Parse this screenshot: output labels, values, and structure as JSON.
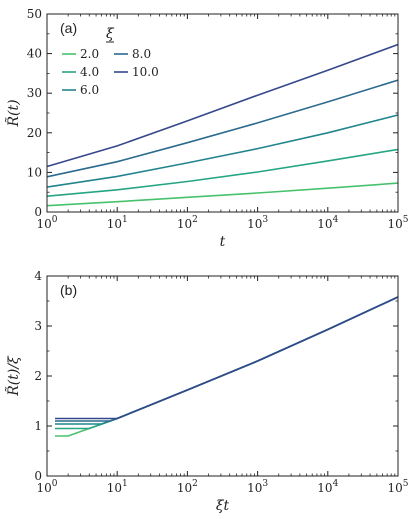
{
  "chart_data": [
    {
      "type": "line",
      "panel_label": "(a)",
      "xlabel": "t",
      "ylabel": "R̃(t)",
      "xscale": "log",
      "xlim": [
        1,
        100000
      ],
      "ylim": [
        0,
        50
      ],
      "xticks": [
        1,
        10,
        100,
        1000,
        10000,
        100000
      ],
      "xtick_labels": [
        "10^0",
        "10^1",
        "10^2",
        "10^3",
        "10^4",
        "10^5"
      ],
      "yticks": [
        0,
        10,
        20,
        30,
        40,
        50
      ],
      "ytick_labels": [
        "0",
        "10",
        "20",
        "30",
        "40",
        "50"
      ],
      "legend": {
        "title": "ξ",
        "placement": "top-left"
      },
      "x": [
        1,
        10,
        100,
        1000,
        10000,
        100000
      ],
      "series": [
        {
          "name": "2.0",
          "color": "#48c16e",
          "values": [
            1.6,
            2.6,
            3.7,
            4.8,
            6.0,
            7.3
          ]
        },
        {
          "name": "4.0",
          "color": "#25a584",
          "values": [
            4.0,
            5.6,
            7.7,
            10.1,
            12.9,
            15.8
          ]
        },
        {
          "name": "6.0",
          "color": "#22858e",
          "values": [
            6.3,
            9.0,
            12.4,
            16.0,
            20.0,
            24.5
          ]
        },
        {
          "name": "8.0",
          "color": "#2c6a8e",
          "values": [
            8.9,
            12.7,
            17.5,
            22.5,
            27.8,
            33.3
          ]
        },
        {
          "name": "10.0",
          "color": "#35488b",
          "values": [
            11.5,
            16.7,
            23.0,
            29.5,
            35.8,
            42.3
          ]
        }
      ]
    },
    {
      "type": "line",
      "panel_label": "(b)",
      "xlabel": "ξt",
      "ylabel": "R̃(t)/ξ",
      "xscale": "log",
      "xlim": [
        1,
        100000
      ],
      "ylim": [
        0,
        4
      ],
      "xticks": [
        1,
        10,
        100,
        1000,
        10000,
        100000
      ],
      "xtick_labels": [
        "10^0",
        "10^1",
        "10^2",
        "10^3",
        "10^4",
        "10^5"
      ],
      "yticks": [
        0,
        1,
        2,
        3,
        4
      ],
      "ytick_labels": [
        "0",
        "1",
        "2",
        "3",
        "4"
      ],
      "series": [
        {
          "name": "2.0",
          "color": "#48c16e",
          "points": [
            [
              1.3,
              0.8
            ],
            [
              2,
              0.8
            ],
            [
              10,
              1.15
            ],
            [
              100,
              1.72
            ],
            [
              1000,
              2.3
            ],
            [
              10000,
              2.93
            ],
            [
              100000,
              3.58
            ]
          ]
        },
        {
          "name": "4.0",
          "color": "#25a584",
          "points": [
            [
              1.3,
              0.95
            ],
            [
              4,
              0.95
            ],
            [
              10,
              1.15
            ],
            [
              100,
              1.72
            ],
            [
              1000,
              2.3
            ],
            [
              10000,
              2.93
            ],
            [
              100000,
              3.58
            ]
          ]
        },
        {
          "name": "6.0",
          "color": "#22858e",
          "points": [
            [
              1.3,
              1.04
            ],
            [
              6,
              1.04
            ],
            [
              10,
              1.15
            ],
            [
              100,
              1.72
            ],
            [
              1000,
              2.3
            ],
            [
              10000,
              2.93
            ],
            [
              100000,
              3.58
            ]
          ]
        },
        {
          "name": "8.0",
          "color": "#2c6a8e",
          "points": [
            [
              1.3,
              1.1
            ],
            [
              8,
              1.1
            ],
            [
              10,
              1.15
            ],
            [
              100,
              1.72
            ],
            [
              1000,
              2.3
            ],
            [
              10000,
              2.93
            ],
            [
              100000,
              3.58
            ]
          ]
        },
        {
          "name": "10.0",
          "color": "#35488b",
          "points": [
            [
              1.3,
              1.15
            ],
            [
              10,
              1.15
            ],
            [
              100,
              1.72
            ],
            [
              1000,
              2.3
            ],
            [
              10000,
              2.93
            ],
            [
              100000,
              3.58
            ]
          ]
        }
      ]
    }
  ]
}
